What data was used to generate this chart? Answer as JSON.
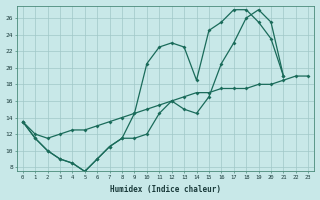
{
  "xlabel": "Humidex (Indice chaleur)",
  "bg_color": "#c8e8e8",
  "grid_color": "#a0c8c8",
  "line_color": "#1a6b5a",
  "xlim": [
    -0.5,
    23.5
  ],
  "ylim": [
    7.5,
    27.5
  ],
  "xticks": [
    0,
    1,
    2,
    3,
    4,
    5,
    6,
    7,
    8,
    9,
    10,
    11,
    12,
    13,
    14,
    15,
    16,
    17,
    18,
    19,
    20,
    21,
    22,
    23
  ],
  "yticks": [
    8,
    10,
    12,
    14,
    16,
    18,
    20,
    22,
    24,
    26
  ],
  "line1_x": [
    0,
    1,
    2,
    3,
    4,
    5,
    6,
    7,
    8,
    9,
    10,
    11,
    12,
    13,
    14,
    15,
    16,
    17,
    18,
    19,
    20,
    21
  ],
  "line1_y": [
    13.5,
    11.5,
    10.0,
    9.0,
    8.5,
    7.5,
    9.0,
    10.5,
    11.5,
    14.5,
    20.5,
    22.5,
    23.0,
    22.5,
    18.5,
    24.5,
    25.5,
    27.0,
    27.0,
    25.5,
    23.5,
    19.0
  ],
  "line2_x": [
    0,
    1,
    2,
    3,
    4,
    5,
    6,
    7,
    8,
    9,
    10,
    11,
    12,
    13,
    14,
    15,
    16,
    17,
    18,
    19,
    20,
    21
  ],
  "line2_y": [
    13.5,
    11.5,
    10.0,
    9.0,
    8.5,
    7.5,
    9.0,
    10.5,
    11.5,
    11.5,
    12.0,
    14.5,
    16.0,
    15.0,
    14.5,
    16.5,
    20.5,
    23.0,
    26.0,
    27.0,
    25.5,
    19.0
  ],
  "line3_x": [
    0,
    1,
    2,
    3,
    4,
    5,
    6,
    7,
    8,
    9,
    10,
    11,
    12,
    13,
    14,
    15,
    16,
    17,
    18,
    19,
    20,
    21,
    22,
    23
  ],
  "line3_y": [
    13.5,
    12.0,
    11.5,
    12.0,
    12.5,
    12.5,
    13.0,
    13.5,
    14.0,
    14.5,
    15.0,
    15.5,
    16.0,
    16.5,
    17.0,
    17.0,
    17.5,
    17.5,
    17.5,
    18.0,
    18.0,
    18.5,
    19.0,
    19.0
  ]
}
